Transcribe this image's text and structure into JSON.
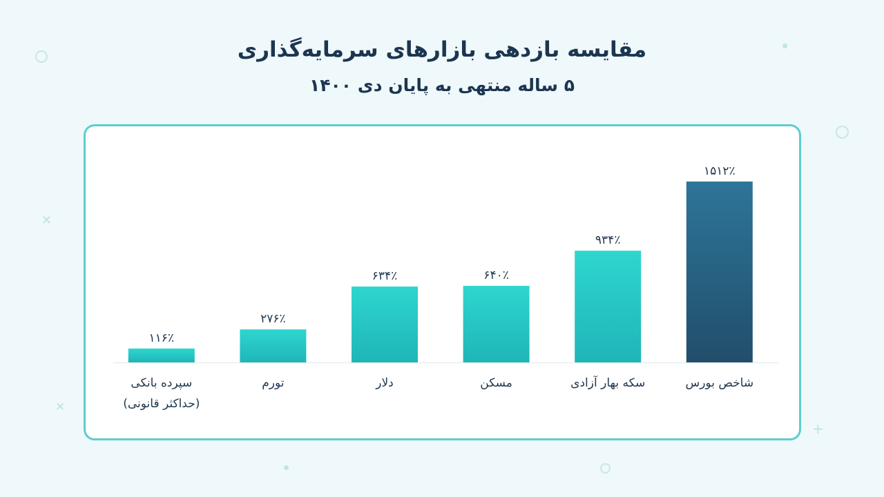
{
  "chart_data": {
    "type": "bar",
    "title": "مقایسه بازدهی بازارهای سرمایه‌گذاری",
    "subtitle": "۵ ساله منتهی به پایان دی ۱۴۰۰",
    "xlabel": "",
    "ylabel": "",
    "categories": [
      "سپرده بانکی (حداکثر قانونی)",
      "تورم",
      "دلار",
      "مسکن",
      "سکه بهار آزادی",
      "شاخص بورس"
    ],
    "values": [
      116,
      276,
      634,
      640,
      934,
      1512
    ],
    "value_labels": [
      "۱۱۶٪",
      "۲۷۶٪",
      "۶۳۴٪",
      "۶۴۰٪",
      "۹۳۴٪",
      "۱۵۱۲٪"
    ],
    "value_unit": "%",
    "highlight_category": "شاخص بورس",
    "ylim": [
      0,
      1512
    ],
    "grid": false,
    "legend": "none",
    "colors": {
      "bar_top": "#2ed6cf",
      "bar_bottom": "#1fb5b8",
      "highlight_top": "#2e7599",
      "highlight_bottom": "#214e6b",
      "baseline": "#e6eef1",
      "text": "#20384f",
      "card_border": "#5dcdcc"
    }
  }
}
